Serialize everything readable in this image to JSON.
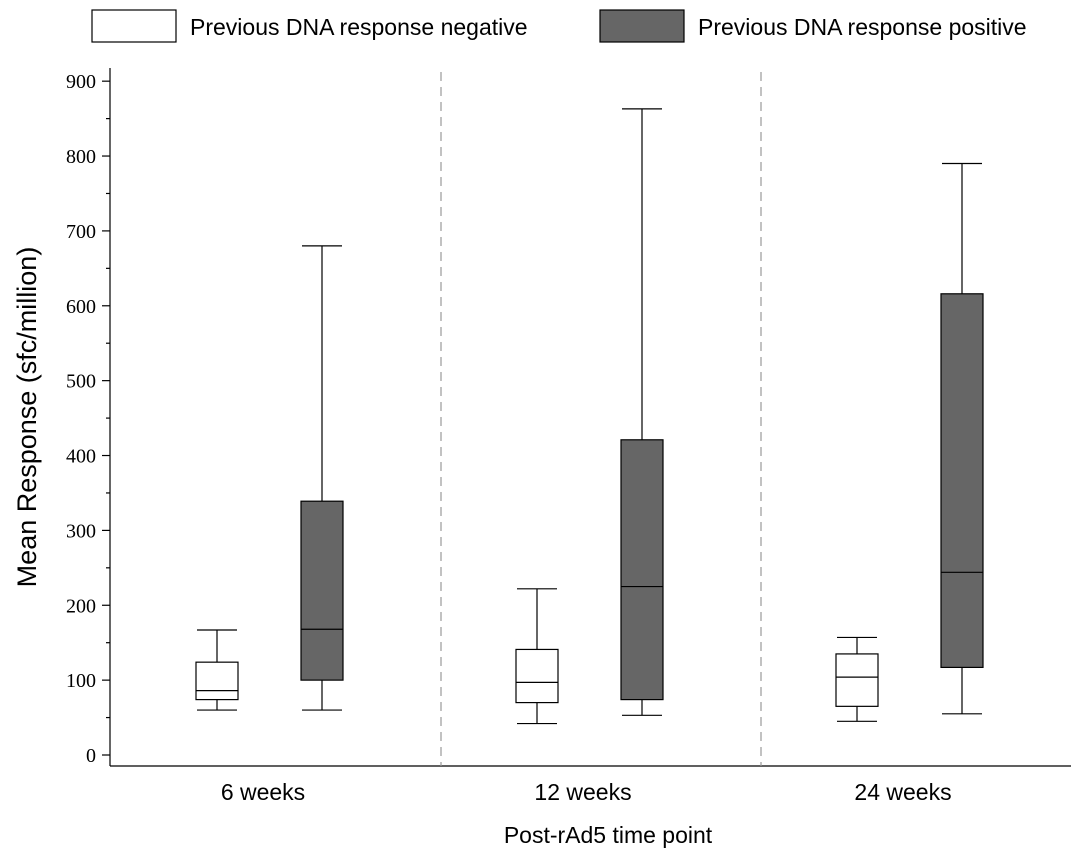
{
  "chart_data": {
    "type": "box",
    "title": "",
    "xlabel": "Post-rAd5 time point",
    "ylabel": "Mean Response (sfc/million)",
    "ylim": [
      0,
      910
    ],
    "yticks": [
      0,
      100,
      200,
      300,
      400,
      500,
      600,
      700,
      800,
      900
    ],
    "yminor_step": 50,
    "grid": false,
    "legend_position": "top",
    "categories": [
      "6 weeks",
      "12 weeks",
      "24 weeks"
    ],
    "series": [
      {
        "name": "Previous DNA response negative",
        "color": "#ffffff",
        "boxes": [
          {
            "min": 60,
            "q1": 74,
            "median": 86,
            "q3": 124,
            "max": 167
          },
          {
            "min": 42,
            "q1": 70,
            "median": 97,
            "q3": 141,
            "max": 222
          },
          {
            "min": 45,
            "q1": 65,
            "median": 104,
            "q3": 135,
            "max": 157
          }
        ]
      },
      {
        "name": "Previous DNA response positive",
        "color": "#666666",
        "boxes": [
          {
            "min": 60,
            "q1": 100,
            "median": 168,
            "q3": 339,
            "max": 680
          },
          {
            "min": 53,
            "q1": 74,
            "median": 225,
            "q3": 421,
            "max": 863
          },
          {
            "min": 55,
            "q1": 117,
            "median": 244,
            "q3": 616,
            "max": 790
          }
        ]
      }
    ]
  }
}
